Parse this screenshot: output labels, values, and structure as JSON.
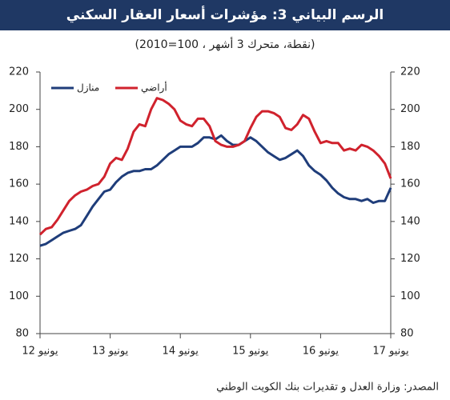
{
  "chart_data": {
    "type": "line",
    "title": "الرسم البياني 3: مؤشرات أسعار العقار السكني",
    "subtitle": "(نقطة، متحرك 3 أشهر ، 100=2010)",
    "source": "المصدر: وزارة العدل و تقديرات بنك الكويت الوطني",
    "categories": [
      "يونيو 12",
      null,
      null,
      null,
      null,
      null,
      null,
      null,
      null,
      null,
      null,
      null,
      "يونيو 13",
      null,
      null,
      null,
      null,
      null,
      null,
      null,
      null,
      null,
      null,
      null,
      "يونيو 14",
      null,
      null,
      null,
      null,
      null,
      null,
      null,
      null,
      null,
      null,
      null,
      "يونيو 15",
      null,
      null,
      null,
      null,
      null,
      null,
      null,
      null,
      null,
      null,
      null,
      "يونيو 16",
      null,
      null,
      null,
      null,
      null,
      null,
      null,
      null,
      null,
      null,
      null,
      "يونيو 17"
    ],
    "series": [
      {
        "name": "منازل",
        "color": "#1f3d7a",
        "values": [
          127,
          128,
          130,
          132,
          134,
          135,
          136,
          138,
          143,
          148,
          152,
          156,
          157,
          161,
          164,
          166,
          167,
          167,
          168,
          168,
          170,
          173,
          176,
          178,
          180,
          180,
          180,
          182,
          185,
          185,
          184,
          186,
          183,
          181,
          181,
          183,
          185,
          183,
          180,
          177,
          175,
          173,
          174,
          176,
          178,
          175,
          170,
          167,
          165,
          162,
          158,
          155,
          153,
          152,
          152,
          151,
          152,
          150,
          151,
          151,
          158
        ]
      },
      {
        "name": "أراضي",
        "color": "#d0222d",
        "values": [
          133,
          136,
          137,
          141,
          146,
          151,
          154,
          156,
          157,
          159,
          160,
          164,
          171,
          174,
          173,
          179,
          188,
          192,
          191,
          200,
          206,
          205,
          203,
          200,
          194,
          192,
          191,
          195,
          195,
          191,
          183,
          181,
          180,
          180,
          181,
          183,
          190,
          196,
          199,
          199,
          198,
          196,
          190,
          189,
          192,
          197,
          195,
          188,
          182,
          183,
          182,
          182,
          178,
          179,
          178,
          181,
          180,
          178,
          175,
          171,
          163
        ]
      }
    ],
    "ylim": [
      80,
      220
    ],
    "yticks": [
      80,
      100,
      120,
      140,
      160,
      180,
      200,
      220
    ],
    "y2lim": [
      80,
      220
    ],
    "y2ticks": [
      80,
      100,
      120,
      140,
      160,
      180,
      200,
      220
    ],
    "legend": "upper left",
    "grid": false
  }
}
